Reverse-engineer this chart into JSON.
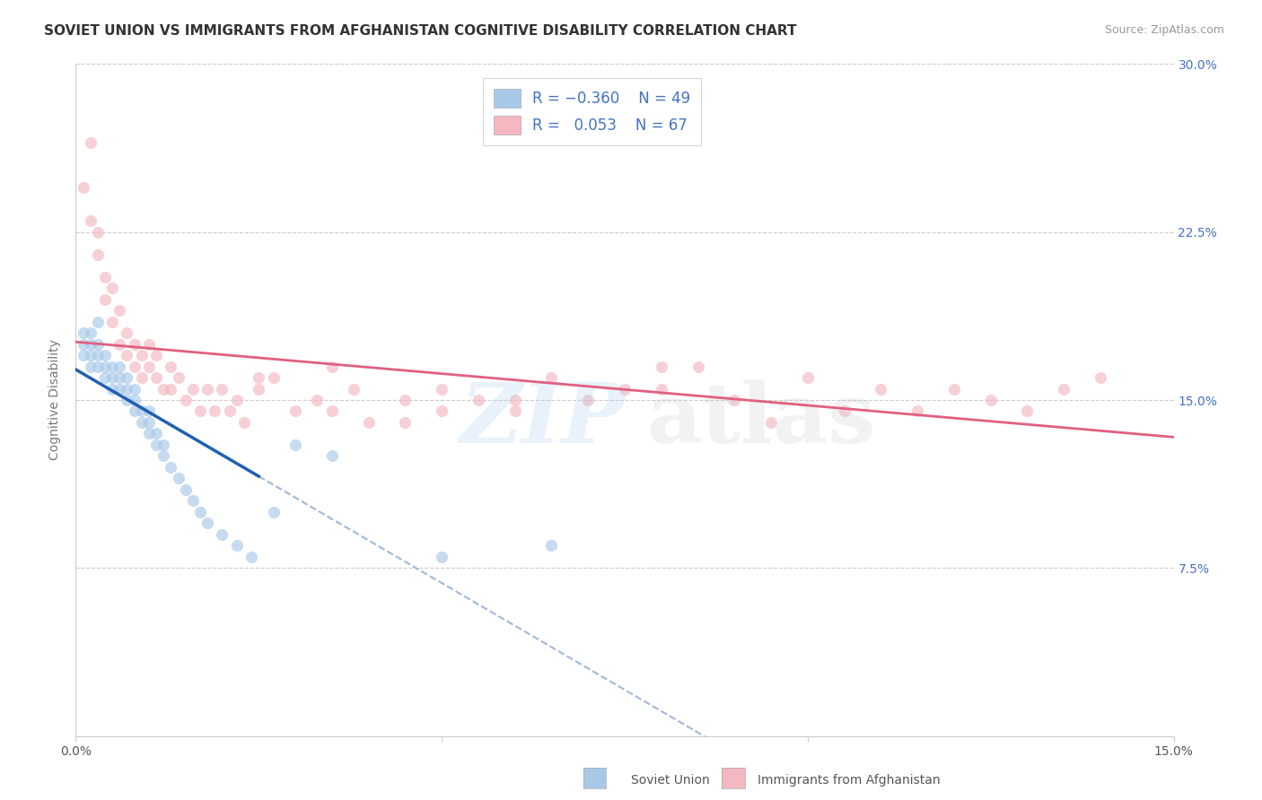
{
  "title": "SOVIET UNION VS IMMIGRANTS FROM AFGHANISTAN COGNITIVE DISABILITY CORRELATION CHART",
  "source": "Source: ZipAtlas.com",
  "ylabel": "Cognitive Disability",
  "xlim": [
    0.0,
    0.15
  ],
  "ylim": [
    0.0,
    0.3
  ],
  "xticks": [
    0.0,
    0.05,
    0.1,
    0.15
  ],
  "xticklabels": [
    "0.0%",
    "",
    "",
    "15.0%"
  ],
  "ytick_vals": [
    0.075,
    0.15,
    0.225,
    0.3
  ],
  "yticklabels_right": [
    "7.5%",
    "15.0%",
    "22.5%",
    "30.0%"
  ],
  "color_soviet": "#a8c8e8",
  "color_afghanistan": "#f4b8c0",
  "color_soviet_line": "#2060b0",
  "color_afghanistan_line": "#e06080",
  "color_soviet_dashed": "#a0b8d8",
  "soviet_x": [
    0.001,
    0.001,
    0.001,
    0.002,
    0.002,
    0.002,
    0.002,
    0.003,
    0.003,
    0.003,
    0.003,
    0.004,
    0.004,
    0.004,
    0.005,
    0.005,
    0.005,
    0.006,
    0.006,
    0.006,
    0.007,
    0.007,
    0.007,
    0.008,
    0.008,
    0.008,
    0.009,
    0.009,
    0.01,
    0.01,
    0.01,
    0.011,
    0.011,
    0.012,
    0.012,
    0.013,
    0.014,
    0.015,
    0.016,
    0.017,
    0.018,
    0.02,
    0.022,
    0.024,
    0.027,
    0.03,
    0.035,
    0.05,
    0.065
  ],
  "soviet_y": [
    0.175,
    0.18,
    0.17,
    0.17,
    0.175,
    0.165,
    0.18,
    0.17,
    0.165,
    0.175,
    0.185,
    0.16,
    0.17,
    0.165,
    0.16,
    0.165,
    0.155,
    0.155,
    0.16,
    0.165,
    0.15,
    0.155,
    0.16,
    0.145,
    0.15,
    0.155,
    0.14,
    0.145,
    0.135,
    0.14,
    0.145,
    0.13,
    0.135,
    0.125,
    0.13,
    0.12,
    0.115,
    0.11,
    0.105,
    0.1,
    0.095,
    0.09,
    0.085,
    0.08,
    0.1,
    0.13,
    0.125,
    0.08,
    0.085
  ],
  "afghanistan_x": [
    0.001,
    0.002,
    0.002,
    0.003,
    0.003,
    0.004,
    0.004,
    0.005,
    0.005,
    0.006,
    0.006,
    0.007,
    0.007,
    0.008,
    0.008,
    0.009,
    0.009,
    0.01,
    0.01,
    0.011,
    0.011,
    0.012,
    0.013,
    0.013,
    0.014,
    0.015,
    0.016,
    0.017,
    0.018,
    0.019,
    0.02,
    0.021,
    0.022,
    0.023,
    0.025,
    0.027,
    0.03,
    0.033,
    0.035,
    0.038,
    0.04,
    0.045,
    0.05,
    0.055,
    0.06,
    0.065,
    0.07,
    0.075,
    0.08,
    0.085,
    0.09,
    0.095,
    0.1,
    0.105,
    0.11,
    0.115,
    0.12,
    0.125,
    0.13,
    0.135,
    0.14,
    0.035,
    0.045,
    0.025,
    0.05,
    0.06,
    0.08
  ],
  "afghanistan_y": [
    0.245,
    0.265,
    0.23,
    0.225,
    0.215,
    0.205,
    0.195,
    0.2,
    0.185,
    0.175,
    0.19,
    0.18,
    0.17,
    0.175,
    0.165,
    0.17,
    0.16,
    0.165,
    0.175,
    0.16,
    0.17,
    0.155,
    0.165,
    0.155,
    0.16,
    0.15,
    0.155,
    0.145,
    0.155,
    0.145,
    0.155,
    0.145,
    0.15,
    0.14,
    0.155,
    0.16,
    0.145,
    0.15,
    0.145,
    0.155,
    0.14,
    0.15,
    0.145,
    0.15,
    0.145,
    0.16,
    0.15,
    0.155,
    0.155,
    0.165,
    0.15,
    0.14,
    0.16,
    0.145,
    0.155,
    0.145,
    0.155,
    0.15,
    0.145,
    0.155,
    0.16,
    0.165,
    0.14,
    0.16,
    0.155,
    0.15,
    0.165
  ],
  "title_fontsize": 11,
  "axis_tick_fontsize": 10,
  "legend_fontsize": 12
}
